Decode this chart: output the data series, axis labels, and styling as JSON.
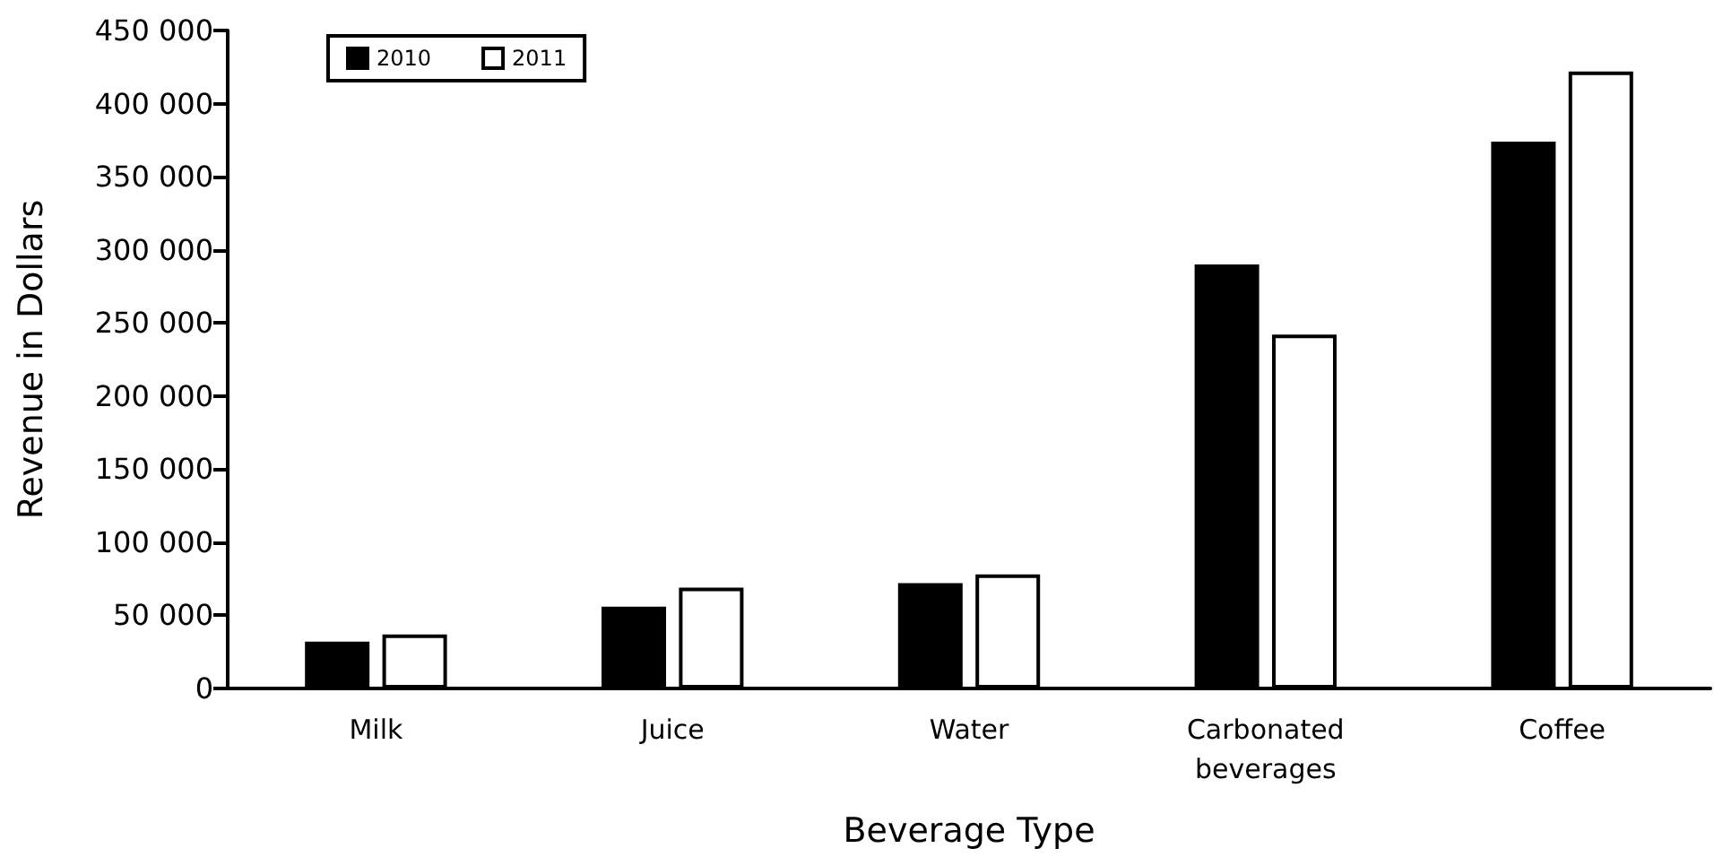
{
  "chart_data": {
    "type": "bar",
    "xlabel": "Beverage Type",
    "ylabel": "Revenue in Dollars",
    "categories": [
      "Milk",
      "Juice",
      "Water",
      "Carbonated\nbeverages",
      "Coffee"
    ],
    "series": [
      {
        "name": "2010",
        "color": "#000000",
        "values": [
          32000,
          56000,
          72000,
          290000,
          374000
        ]
      },
      {
        "name": "2011",
        "color": "#ffffff",
        "values": [
          37000,
          69000,
          78000,
          242000,
          422000
        ]
      }
    ],
    "ylim": [
      0,
      450000
    ],
    "yticks": [
      {
        "value": 0,
        "label": "0"
      },
      {
        "value": 50000,
        "label": "50 000"
      },
      {
        "value": 100000,
        "label": "100 000"
      },
      {
        "value": 150000,
        "label": "150 000"
      },
      {
        "value": 200000,
        "label": "200 000"
      },
      {
        "value": 250000,
        "label": "250 000"
      },
      {
        "value": 300000,
        "label": "300 000"
      },
      {
        "value": 350000,
        "label": "350 000"
      },
      {
        "value": 400000,
        "label": "400 000"
      },
      {
        "value": 450000,
        "label": "450 000"
      }
    ],
    "grid": false,
    "legend": "top left"
  }
}
